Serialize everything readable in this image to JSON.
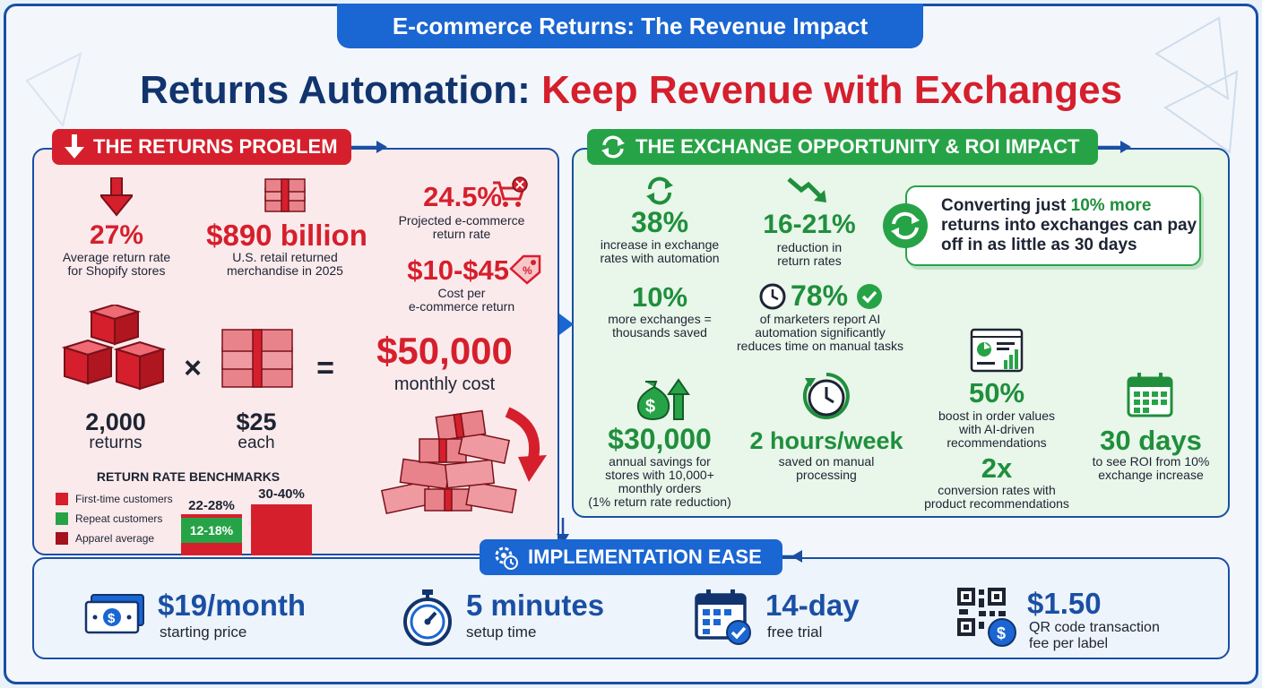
{
  "banner": {
    "title": "E-commerce Returns: The Revenue Impact"
  },
  "main_title": {
    "part1": "Returns Automation: ",
    "part2": "Keep Revenue with Exchanges"
  },
  "colors": {
    "red": "#d61f2c",
    "green": "#27a347",
    "blue": "#1a66d2",
    "navy": "#12346e"
  },
  "problem": {
    "header": "THE RETURNS PROBLEM",
    "stat1": {
      "value": "27%",
      "label1": "Average return rate",
      "label2": "for Shopify stores"
    },
    "stat2": {
      "value": "$890 billion",
      "label1": "U.S. retail returned",
      "label2": "merchandise in 2025"
    },
    "stat3": {
      "value": "24.5%",
      "label1": "Projected e-commerce",
      "label2": "return rate"
    },
    "stat4": {
      "value": "$10-$45",
      "label1": "Cost per",
      "label2": "e-commerce return"
    },
    "equation": {
      "returns_value": "2,000",
      "returns_label": "returns",
      "times": "×",
      "each_value": "$25",
      "each_label": "each",
      "equals": "=",
      "result_value": "$50,000",
      "result_label": "monthly cost"
    },
    "benchmarks": {
      "title": "RETURN RATE BENCHMARKS",
      "legend": [
        {
          "label": "First-time customers",
          "color": "#d61f2c"
        },
        {
          "label": "Repeat customers",
          "color": "#27a347"
        },
        {
          "label": "Apparel average",
          "color": "#a3121e"
        }
      ],
      "bars": [
        {
          "label": "22-28%",
          "series": "First-time customers",
          "low": 22,
          "high": 28
        },
        {
          "label": "12-18%",
          "series": "Repeat customers",
          "low": 12,
          "high": 18
        },
        {
          "label": "30-40%",
          "series": "Apparel average",
          "low": 30,
          "high": 40
        }
      ]
    }
  },
  "opportunity": {
    "header": "THE EXCHANGE OPPORTUNITY & ROI IMPACT",
    "stat1": {
      "value": "38%",
      "label1": "increase in exchange",
      "label2": "rates with automation"
    },
    "stat2": {
      "value": "16-21%",
      "label1": "reduction in",
      "label2": "return rates"
    },
    "callout": {
      "pre": "Converting just ",
      "highlight": "10% more",
      "post": " returns into exchanges can pay off in as little as 30 days"
    },
    "stat3": {
      "value": "10%",
      "label1": "more exchanges =",
      "label2": "thousands saved"
    },
    "stat4": {
      "value": "78%",
      "label1": "of marketers report AI",
      "label2": "automation significantly",
      "label3": "reduces time on manual tasks"
    },
    "stat5": {
      "value": "$30,000",
      "label1": "annual savings for",
      "label2": "stores with 10,000+",
      "label3": "monthly orders",
      "label4": "(1% return rate reduction)"
    },
    "stat6": {
      "value": "2 hours/week",
      "label1": "saved on manual",
      "label2": "processing"
    },
    "stat7": {
      "value": "50%",
      "label1": "boost in order values",
      "label2": "with AI-driven",
      "label3": "recommendations"
    },
    "stat8": {
      "value": "2x",
      "label1": "conversion rates with",
      "label2": "product recommendations"
    },
    "stat9": {
      "value": "30 days",
      "label1": "to see ROI from 10%",
      "label2": "exchange increase"
    }
  },
  "implementation": {
    "header": "IMPLEMENTATION EASE",
    "items": [
      {
        "value": "$19/month",
        "label": "starting price",
        "icon": "cash-icon"
      },
      {
        "value": "5 minutes",
        "label": "setup time",
        "icon": "stopwatch-icon"
      },
      {
        "value": "14-day",
        "label": "free trial",
        "icon": "calendar-check-icon"
      },
      {
        "value": "$1.50",
        "label1": "QR code transaction",
        "label2": "fee per label",
        "icon": "qr-code-icon"
      }
    ]
  }
}
